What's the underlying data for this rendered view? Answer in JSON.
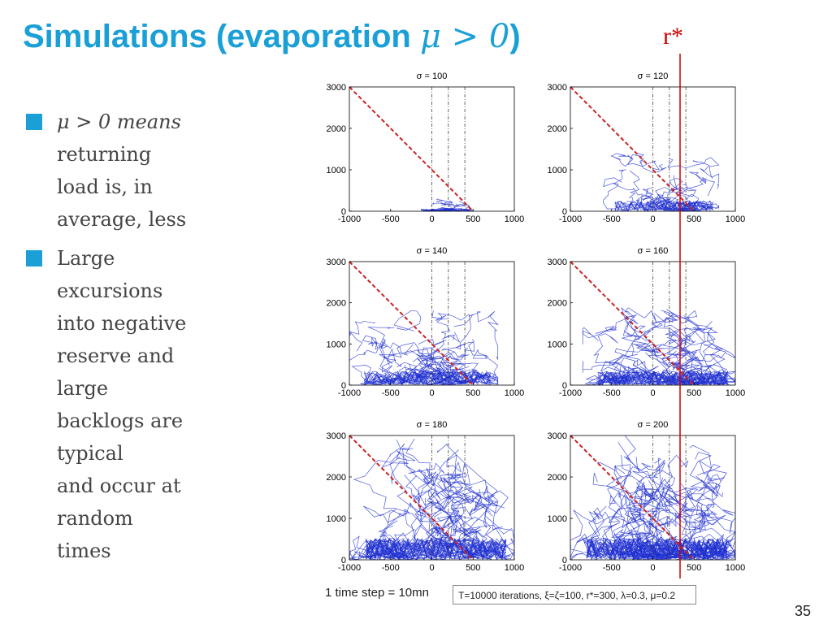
{
  "title": {
    "text": "Simulations (evaporation ",
    "math": "μ > 0",
    "close": ")"
  },
  "r_star_label": "r*",
  "bullets": [
    {
      "lines": [
        "μ > 0 means",
        "returning",
        "load is, in",
        "average, less"
      ]
    },
    {
      "lines": [
        "Large",
        "excursions",
        "into negative",
        "reserve and",
        "large",
        "backlogs are",
        "typical",
        "and occur at",
        "random",
        "times"
      ]
    }
  ],
  "caption": "1 time step = 10mn",
  "params_box": "T=10000 iterations, ξ=ζ=100, r*=300, λ=0.3, μ=0.2",
  "page_number": "35",
  "colors": {
    "title": "#1aa0d6",
    "bullet": "#1aa0d6",
    "r_star_line": "#cc0000",
    "trajectories": "#1f2fd0",
    "dashed_line": "#cc2222"
  },
  "chart_data": [
    {
      "type": "line",
      "title": "σ = 100",
      "xlim": [
        -1000,
        1000
      ],
      "ylim": [
        0,
        3000
      ],
      "xticks": [
        "-1000",
        "-500",
        "0",
        "500",
        "1000"
      ],
      "yticks": [
        "0",
        "1000",
        "2000",
        "3000"
      ],
      "reference_lines_x": [
        0,
        200,
        400
      ],
      "diagonal": [
        [
          -1000,
          3000
        ],
        [
          500,
          0
        ]
      ],
      "trajectory_extent": {
        "x": [
          -200,
          500
        ],
        "y_max": 300
      }
    },
    {
      "type": "line",
      "title": "σ = 120",
      "xlim": [
        -1000,
        1000
      ],
      "ylim": [
        0,
        3000
      ],
      "xticks": [
        "-1000",
        "-500",
        "0",
        "500",
        "1000"
      ],
      "yticks": [
        "0",
        "1000",
        "2000",
        "3000"
      ],
      "reference_lines_x": [
        0,
        200,
        400
      ],
      "diagonal": [
        [
          -1000,
          3000
        ],
        [
          500,
          0
        ]
      ],
      "trajectory_extent": {
        "x": [
          -600,
          800
        ],
        "y_max": 1400
      }
    },
    {
      "type": "line",
      "title": "σ = 140",
      "xlim": [
        -1000,
        1000
      ],
      "ylim": [
        0,
        3000
      ],
      "xticks": [
        "-1000",
        "-500",
        "0",
        "500",
        "1000"
      ],
      "yticks": [
        "0",
        "1000",
        "2000",
        "3000"
      ],
      "reference_lines_x": [
        0,
        200,
        400
      ],
      "diagonal": [
        [
          -1000,
          3000
        ],
        [
          500,
          0
        ]
      ],
      "trajectory_extent": {
        "x": [
          -1000,
          800
        ],
        "y_max": 1900
      }
    },
    {
      "type": "line",
      "title": "σ = 160",
      "xlim": [
        -1000,
        1000
      ],
      "ylim": [
        0,
        3000
      ],
      "xticks": [
        "-1000",
        "-500",
        "0",
        "500",
        "1000"
      ],
      "yticks": [
        "0",
        "1000",
        "2000",
        "3000"
      ],
      "reference_lines_x": [
        0,
        200,
        400
      ],
      "diagonal": [
        [
          -1000,
          3000
        ],
        [
          500,
          0
        ]
      ],
      "trajectory_extent": {
        "x": [
          -850,
          1000
        ],
        "y_max": 1900
      }
    },
    {
      "type": "line",
      "title": "σ = 180",
      "xlim": [
        -1000,
        1000
      ],
      "ylim": [
        0,
        3000
      ],
      "xticks": [
        "-1000",
        "-500",
        "0",
        "500",
        "1000"
      ],
      "yticks": [
        "0",
        "1000",
        "2000",
        "3000"
      ],
      "reference_lines_x": [
        0,
        200,
        400
      ],
      "diagonal": [
        [
          -1000,
          3000
        ],
        [
          500,
          0
        ]
      ],
      "trajectory_extent": {
        "x": [
          -1000,
          1000
        ],
        "y_max": 3000
      }
    },
    {
      "type": "line",
      "title": "σ = 200",
      "xlim": [
        -1000,
        1000
      ],
      "ylim": [
        0,
        3000
      ],
      "xticks": [
        "-1000",
        "-500",
        "0",
        "500",
        "1000"
      ],
      "yticks": [
        "0",
        "1000",
        "2000",
        "3000"
      ],
      "reference_lines_x": [
        0,
        200,
        400
      ],
      "diagonal": [
        [
          -1000,
          3000
        ],
        [
          500,
          0
        ]
      ],
      "trajectory_extent": {
        "x": [
          -1000,
          1000
        ],
        "y_max": 3000
      }
    }
  ]
}
